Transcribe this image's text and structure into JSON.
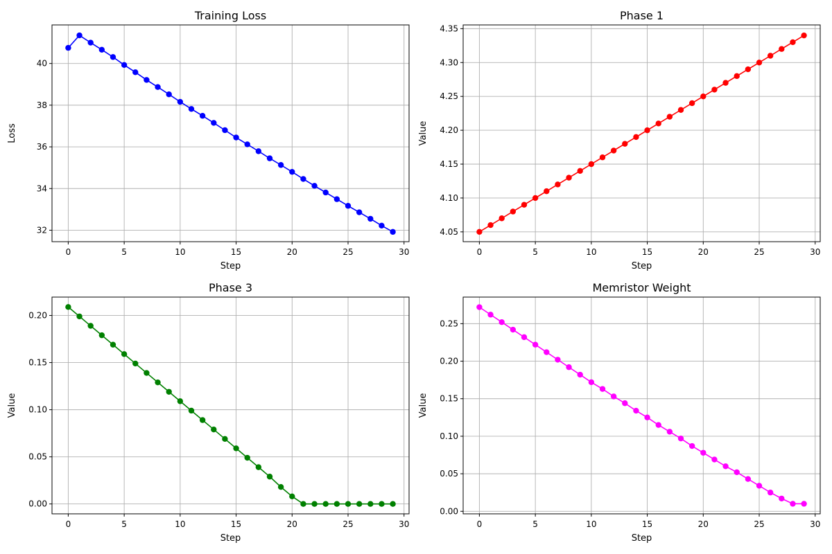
{
  "chart_data": [
    {
      "type": "line",
      "title": "Training Loss",
      "xlabel": "Step",
      "ylabel": "Loss",
      "color": "#0000ff",
      "grid": true,
      "xlim": [
        -1.45,
        30.45
      ],
      "ylim": [
        31.45,
        41.85
      ],
      "xticks": [
        0,
        5,
        10,
        15,
        20,
        25,
        30
      ],
      "yticks": [
        32,
        34,
        36,
        38,
        40
      ],
      "ytick_labels": [
        "32",
        "34",
        "36",
        "38",
        "40"
      ],
      "series": [
        {
          "x": [
            0,
            1,
            2,
            3,
            4,
            5,
            6,
            7,
            8,
            9,
            10,
            11,
            12,
            13,
            14,
            15,
            16,
            17,
            18,
            19,
            20,
            21,
            22,
            23,
            24,
            25,
            26,
            27,
            28,
            29
          ],
          "y": [
            40.75,
            41.35,
            41.0,
            40.66,
            40.31,
            39.93,
            39.58,
            39.21,
            38.87,
            38.52,
            38.16,
            37.82,
            37.49,
            37.15,
            36.8,
            36.45,
            36.12,
            35.79,
            35.45,
            35.13,
            34.8,
            34.46,
            34.13,
            33.81,
            33.49,
            33.17,
            32.86,
            32.55,
            32.22,
            31.92
          ]
        }
      ]
    },
    {
      "type": "line",
      "title": "Phase 1",
      "xlabel": "Step",
      "ylabel": "Value",
      "color": "#ff0000",
      "grid": true,
      "xlim": [
        -1.45,
        30.45
      ],
      "ylim": [
        4.0355,
        4.3555
      ],
      "xticks": [
        0,
        5,
        10,
        15,
        20,
        25,
        30
      ],
      "yticks": [
        4.05,
        4.1,
        4.15,
        4.2,
        4.25,
        4.3,
        4.35
      ],
      "ytick_labels": [
        "4.05",
        "4.10",
        "4.15",
        "4.20",
        "4.25",
        "4.30",
        "4.35"
      ],
      "series": [
        {
          "x": [
            0,
            1,
            2,
            3,
            4,
            5,
            6,
            7,
            8,
            9,
            10,
            11,
            12,
            13,
            14,
            15,
            16,
            17,
            18,
            19,
            20,
            21,
            22,
            23,
            24,
            25,
            26,
            27,
            28,
            29
          ],
          "y": [
            4.05,
            4.06,
            4.07,
            4.08,
            4.09,
            4.1,
            4.11,
            4.12,
            4.13,
            4.14,
            4.15,
            4.16,
            4.17,
            4.18,
            4.19,
            4.2,
            4.21,
            4.22,
            4.23,
            4.24,
            4.25,
            4.26,
            4.27,
            4.28,
            4.29,
            4.3,
            4.31,
            4.32,
            4.33,
            4.34
          ]
        }
      ]
    },
    {
      "type": "line",
      "title": "Phase 3",
      "xlabel": "Step",
      "ylabel": "Value",
      "color": "#008000",
      "grid": true,
      "xlim": [
        -1.45,
        30.45
      ],
      "ylim": [
        -0.0105,
        0.2195
      ],
      "xticks": [
        0,
        5,
        10,
        15,
        20,
        25,
        30
      ],
      "yticks": [
        0.0,
        0.05,
        0.1,
        0.15,
        0.2
      ],
      "ytick_labels": [
        "0.00",
        "0.05",
        "0.10",
        "0.15",
        "0.20"
      ],
      "series": [
        {
          "x": [
            0,
            1,
            2,
            3,
            4,
            5,
            6,
            7,
            8,
            9,
            10,
            11,
            12,
            13,
            14,
            15,
            16,
            17,
            18,
            19,
            20,
            21,
            22,
            23,
            24,
            25,
            26,
            27,
            28,
            29
          ],
          "y": [
            0.209,
            0.199,
            0.189,
            0.179,
            0.169,
            0.159,
            0.149,
            0.139,
            0.129,
            0.119,
            0.109,
            0.099,
            0.089,
            0.079,
            0.069,
            0.059,
            0.049,
            0.039,
            0.029,
            0.018,
            0.008,
            0.0,
            0.0,
            0.0,
            0.0,
            0.0,
            0.0,
            0.0,
            0.0,
            0.0
          ]
        }
      ]
    },
    {
      "type": "line",
      "title": "Memristor Weight",
      "xlabel": "Step",
      "ylabel": "Value",
      "color": "#ff00ff",
      "grid": true,
      "xlim": [
        -1.45,
        30.45
      ],
      "ylim": [
        -0.0034,
        0.2854
      ],
      "xticks": [
        0,
        5,
        10,
        15,
        20,
        25,
        30
      ],
      "yticks": [
        0.0,
        0.05,
        0.1,
        0.15,
        0.2,
        0.25
      ],
      "ytick_labels": [
        "0.00",
        "0.05",
        "0.10",
        "0.15",
        "0.20",
        "0.25"
      ],
      "series": [
        {
          "x": [
            0,
            1,
            2,
            3,
            4,
            5,
            6,
            7,
            8,
            9,
            10,
            11,
            12,
            13,
            14,
            15,
            16,
            17,
            18,
            19,
            20,
            21,
            22,
            23,
            24,
            25,
            26,
            27,
            28,
            29
          ],
          "y": [
            0.272,
            0.262,
            0.252,
            0.242,
            0.232,
            0.222,
            0.212,
            0.202,
            0.192,
            0.182,
            0.172,
            0.163,
            0.153,
            0.144,
            0.134,
            0.125,
            0.115,
            0.106,
            0.097,
            0.087,
            0.078,
            0.069,
            0.06,
            0.052,
            0.043,
            0.034,
            0.025,
            0.017,
            0.01,
            0.01
          ]
        }
      ]
    }
  ]
}
